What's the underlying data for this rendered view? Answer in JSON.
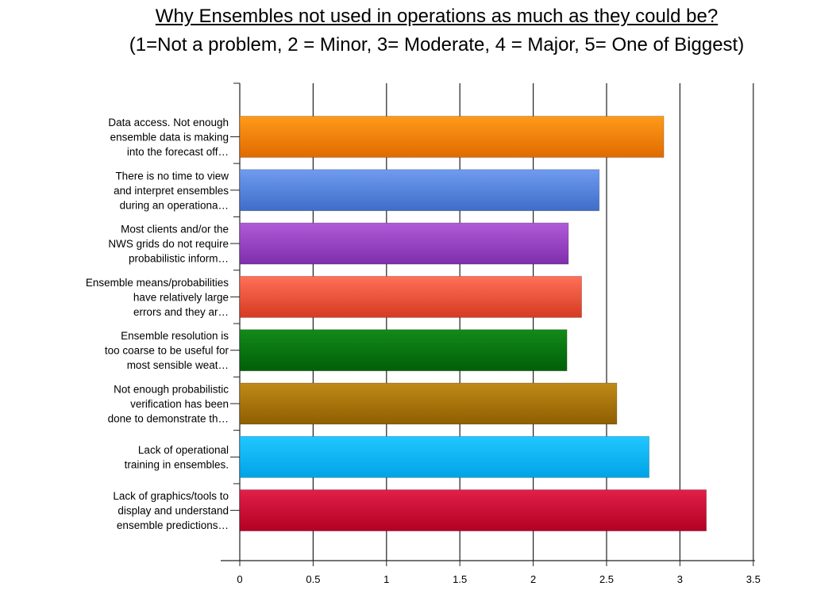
{
  "title_line1": "Why Ensembles not used in operations as much as they could be?",
  "title_line2": "(1=Not a problem, 2 = Minor, 3= Moderate, 4 = Major, 5= One of Biggest)",
  "chart_data": {
    "type": "bar",
    "orientation": "horizontal",
    "title": "Why Ensembles not used in operations as much as they could be?",
    "subtitle": "(1=Not a problem, 2 = Minor, 3= Moderate, 4 = Major, 5= One of Biggest)",
    "categories": [
      [
        "Data access. Not enough",
        "ensemble data is making",
        "into the forecast off…"
      ],
      [
        "There is no time to view",
        "and interpret ensembles",
        "during an operationa…"
      ],
      [
        "Most clients and/or the",
        "NWS grids do not require",
        "probabilistic inform…"
      ],
      [
        "Ensemble means/probabilities",
        "have relatively large",
        "errors and they ar…"
      ],
      [
        "Ensemble resolution is",
        "too coarse to be useful for",
        "most sensible weat…"
      ],
      [
        "Not enough probabilistic",
        "verification has been",
        "done to demonstrate th…"
      ],
      [
        "Lack of operational",
        "training in ensembles."
      ],
      [
        "Lack of graphics/tools to",
        "display and understand",
        "ensemble predictions…"
      ]
    ],
    "values": [
      2.89,
      2.45,
      2.24,
      2.33,
      2.23,
      2.57,
      2.79,
      3.18
    ],
    "colors": [
      [
        "#ff9a1a",
        "#e06a00"
      ],
      [
        "#6f9cf0",
        "#3f6cc8"
      ],
      [
        "#b05ad8",
        "#7f2fab"
      ],
      [
        "#ff7058",
        "#d63a22"
      ],
      [
        "#138a1a",
        "#005f08"
      ],
      [
        "#c08a18",
        "#8f5f00"
      ],
      [
        "#22c6ff",
        "#00a3e6"
      ],
      [
        "#e0204a",
        "#b30022"
      ]
    ],
    "xlim": [
      0,
      3.5
    ],
    "xticks": [
      "0",
      "0.5",
      "1",
      "1.5",
      "2",
      "2.5",
      "3",
      "3.5"
    ],
    "grid": true,
    "xlabel": "",
    "ylabel": ""
  }
}
